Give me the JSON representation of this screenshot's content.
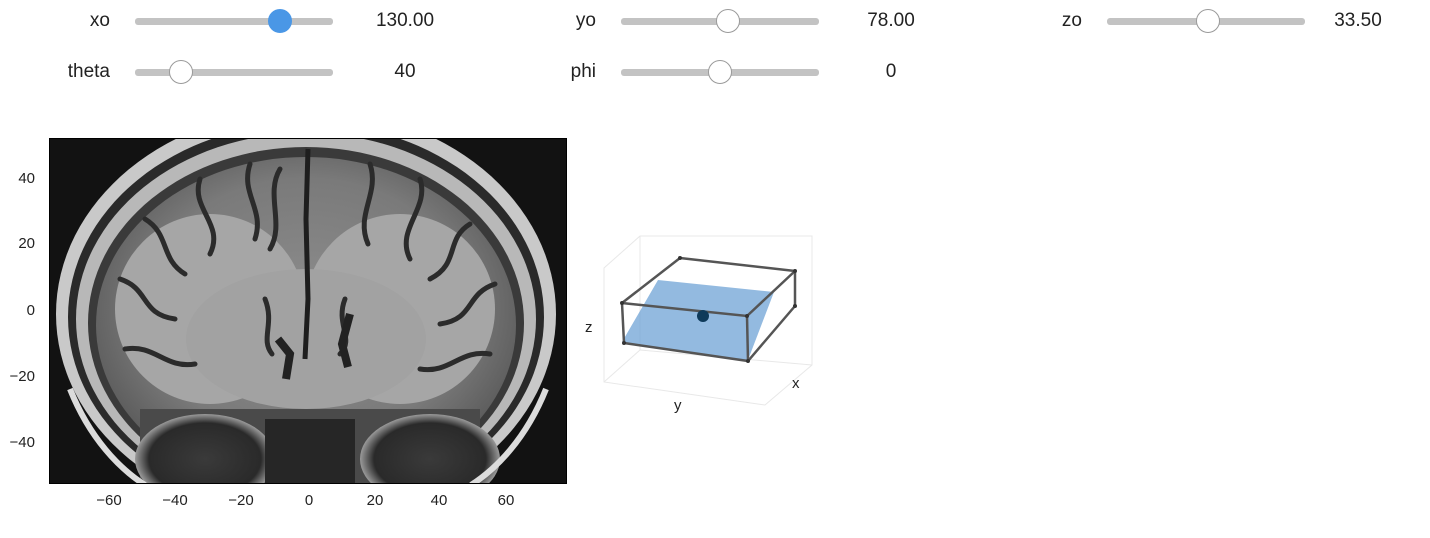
{
  "sliders": [
    {
      "id": "xo",
      "label": "xo",
      "value": "130.00",
      "fraction": 0.73,
      "active": true
    },
    {
      "id": "yo",
      "label": "yo",
      "value": "78.00",
      "fraction": 0.54,
      "active": false
    },
    {
      "id": "zo",
      "label": "zo",
      "value": "33.50",
      "fraction": 0.51,
      "active": false
    },
    {
      "id": "theta",
      "label": "theta",
      "value": "40",
      "fraction": 0.23,
      "active": false
    },
    {
      "id": "phi",
      "label": "phi",
      "value": "0",
      "fraction": 0.5,
      "active": false
    }
  ],
  "mri_plot": {
    "y_ticks": [
      "40",
      "20",
      "0",
      "−20",
      "−40"
    ],
    "x_ticks": [
      "−60",
      "−40",
      "−20",
      "0",
      "20",
      "40",
      "60"
    ]
  },
  "plot3d": {
    "xlabel": "x",
    "ylabel": "y",
    "zlabel": "z",
    "plane_color": "#6fa3d6",
    "point_color": "#0e3a5a"
  }
}
